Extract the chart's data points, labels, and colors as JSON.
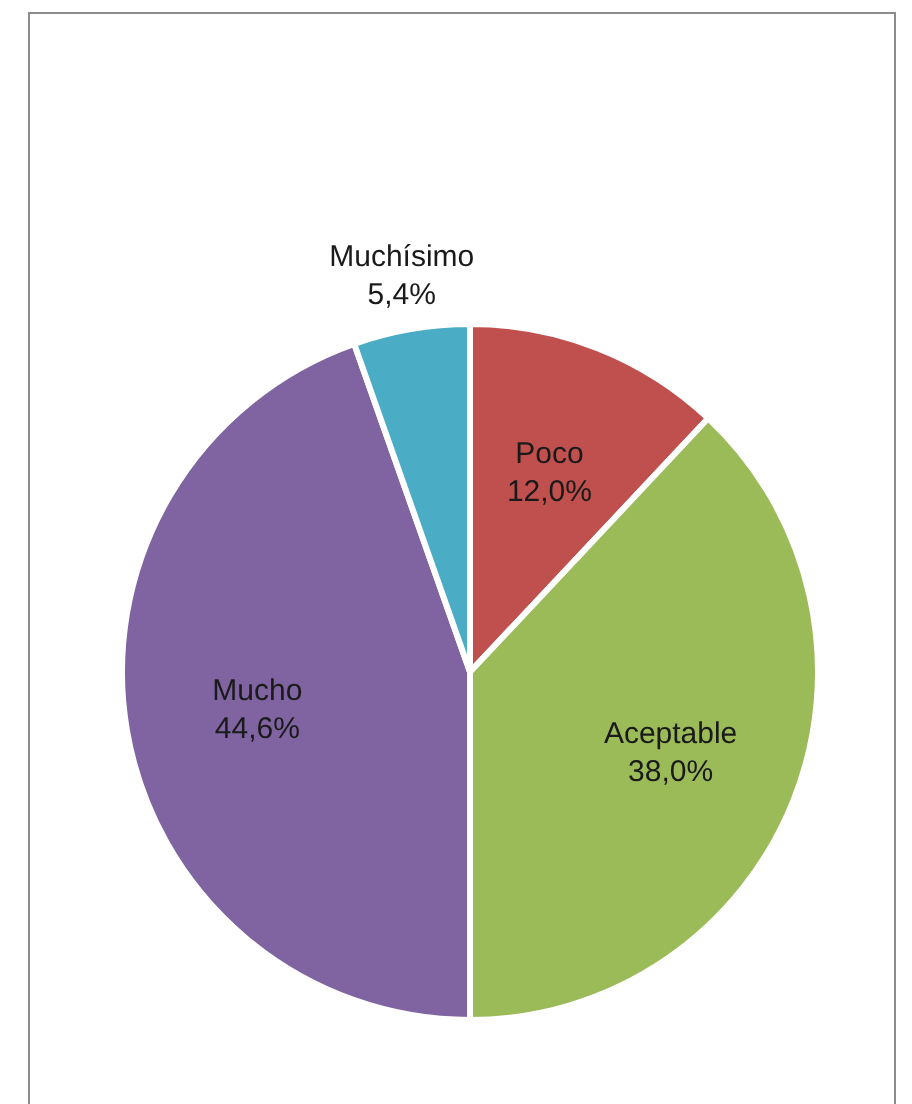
{
  "chart_data": {
    "type": "pie",
    "categories": [
      "Poco",
      "Aceptable",
      "Mucho",
      "Muchísimo"
    ],
    "values": [
      12.0,
      38.0,
      44.6,
      5.4
    ],
    "colors": [
      "#c0504d",
      "#9bbb59",
      "#8064a2",
      "#4bacc6"
    ],
    "value_labels": [
      "12,0%",
      "38,0%",
      "44,6%",
      "5,4%"
    ],
    "legend": false
  }
}
